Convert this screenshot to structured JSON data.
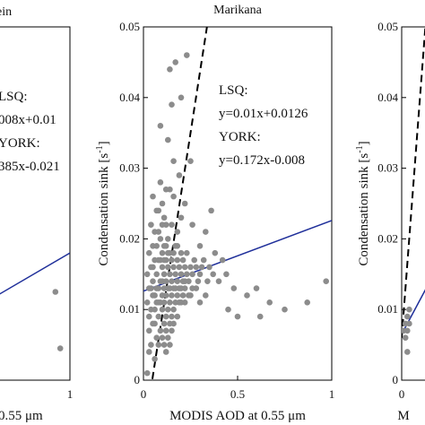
{
  "chart_data": [
    {
      "type": "scatter",
      "title": "",
      "title_partial": "ein",
      "xlabel": "0.55 μm",
      "ylabel": "",
      "xlim": [
        0,
        1
      ],
      "ylim": [
        0,
        0.05
      ],
      "x_ticks": [
        "1"
      ],
      "y_ticks": [],
      "annotations": [
        "LSQ:",
        "008x+0.01",
        "YORK:",
        "385x-0.021"
      ],
      "series": [
        {
          "points": [
            [
              0.85,
              0.0125
            ],
            [
              0.9,
              0.0045
            ]
          ]
        }
      ],
      "lines": [
        {
          "kind": "lsq",
          "style": "solid",
          "color": "#1f2f9a",
          "slope": 0.008,
          "intercept": 0.01
        }
      ]
    },
    {
      "type": "scatter",
      "title": "Marikana",
      "xlabel": "MODIS AOD at 0.55 μm",
      "ylabel": "Condensation sink [s",
      "ylabel_sup": "-1",
      "ylabel_close": "]",
      "xlim": [
        0,
        1
      ],
      "ylim": [
        0,
        0.05
      ],
      "x_ticks": [
        "0",
        "0.5",
        "1"
      ],
      "y_ticks": [
        "0",
        "0.01",
        "0.02",
        "0.03",
        "0.04",
        "0.05"
      ],
      "annotations": [
        "LSQ:",
        "y=0.01x+0.0126",
        "YORK:",
        "y=0.172x-0.008"
      ],
      "series": [
        {
          "points": [
            [
              0.02,
              0.001
            ],
            [
              0.03,
              0.004
            ],
            [
              0.03,
              0.007
            ],
            [
              0.04,
              0.01
            ],
            [
              0.04,
              0.013
            ],
            [
              0.05,
              0.016
            ],
            [
              0.05,
              0.019
            ],
            [
              0.06,
              0.003
            ],
            [
              0.06,
              0.008
            ],
            [
              0.06,
              0.012
            ],
            [
              0.07,
              0.006
            ],
            [
              0.07,
              0.011
            ],
            [
              0.07,
              0.015
            ],
            [
              0.08,
              0.005
            ],
            [
              0.08,
              0.009
            ],
            [
              0.08,
              0.013
            ],
            [
              0.08,
              0.017
            ],
            [
              0.09,
              0.007
            ],
            [
              0.09,
              0.011
            ],
            [
              0.09,
              0.014
            ],
            [
              0.09,
              0.02
            ],
            [
              0.1,
              0.006
            ],
            [
              0.1,
              0.01
            ],
            [
              0.1,
              0.012
            ],
            [
              0.1,
              0.016
            ],
            [
              0.1,
              0.018
            ],
            [
              0.11,
              0.008
            ],
            [
              0.11,
              0.011
            ],
            [
              0.11,
              0.013
            ],
            [
              0.11,
              0.015
            ],
            [
              0.11,
              0.019
            ],
            [
              0.12,
              0.007
            ],
            [
              0.12,
              0.009
            ],
            [
              0.12,
              0.012
            ],
            [
              0.12,
              0.014
            ],
            [
              0.12,
              0.017
            ],
            [
              0.13,
              0.01
            ],
            [
              0.13,
              0.013
            ],
            [
              0.13,
              0.016
            ],
            [
              0.13,
              0.02
            ],
            [
              0.14,
              0.008
            ],
            [
              0.14,
              0.011
            ],
            [
              0.14,
              0.015
            ],
            [
              0.14,
              0.018
            ],
            [
              0.15,
              0.012
            ],
            [
              0.15,
              0.014
            ],
            [
              0.15,
              0.022
            ],
            [
              0.16,
              0.01
            ],
            [
              0.16,
              0.013
            ],
            [
              0.16,
              0.016
            ],
            [
              0.17,
              0.011
            ],
            [
              0.17,
              0.015
            ],
            [
              0.17,
              0.019
            ],
            [
              0.18,
              0.012
            ],
            [
              0.18,
              0.014
            ],
            [
              0.18,
              0.017
            ],
            [
              0.19,
              0.013
            ],
            [
              0.19,
              0.016
            ],
            [
              0.2,
              0.011
            ],
            [
              0.2,
              0.015
            ],
            [
              0.2,
              0.018
            ],
            [
              0.21,
              0.014
            ],
            [
              0.21,
              0.017
            ],
            [
              0.22,
              0.013
            ],
            [
              0.22,
              0.016
            ],
            [
              0.23,
              0.015
            ],
            [
              0.23,
              0.018
            ],
            [
              0.24,
              0.014
            ],
            [
              0.25,
              0.016
            ],
            [
              0.26,
              0.015
            ],
            [
              0.27,
              0.017
            ],
            [
              0.28,
              0.016
            ],
            [
              0.3,
              0.015
            ],
            [
              0.32,
              0.017
            ],
            [
              0.35,
              0.016
            ],
            [
              0.38,
              0.018
            ],
            [
              0.42,
              0.017
            ],
            [
              0.05,
              0.026
            ],
            [
              0.08,
              0.024
            ],
            [
              0.1,
              0.025
            ],
            [
              0.12,
              0.022
            ],
            [
              0.14,
              0.027
            ],
            [
              0.16,
              0.026
            ],
            [
              0.18,
              0.021
            ],
            [
              0.2,
              0.023
            ],
            [
              0.13,
              0.034
            ],
            [
              0.16,
              0.031
            ],
            [
              0.19,
              0.029
            ],
            [
              0.22,
              0.025
            ],
            [
              0.17,
              0.045
            ],
            [
              0.23,
              0.046
            ],
            [
              0.09,
              0.036
            ],
            [
              0.2,
              0.04
            ],
            [
              0.14,
              0.044
            ],
            [
              0.25,
              0.031
            ],
            [
              0.15,
              0.039
            ],
            [
              0.26,
              0.022
            ],
            [
              0.3,
              0.019
            ],
            [
              0.33,
              0.021
            ],
            [
              0.36,
              0.024
            ],
            [
              0.02,
              0.015
            ],
            [
              0.03,
              0.018
            ],
            [
              0.04,
              0.022
            ],
            [
              0.05,
              0.012
            ],
            [
              0.06,
              0.021
            ],
            [
              0.07,
              0.024
            ],
            [
              0.09,
              0.028
            ],
            [
              0.11,
              0.023
            ],
            [
              0.12,
              0.027
            ],
            [
              0.15,
              0.009
            ],
            [
              0.18,
              0.009
            ],
            [
              0.22,
              0.011
            ],
            [
              0.25,
              0.012
            ],
            [
              0.28,
              0.013
            ],
            [
              0.3,
              0.011
            ],
            [
              0.33,
              0.012
            ],
            [
              0.4,
              0.014
            ],
            [
              0.45,
              0.01
            ],
            [
              0.5,
              0.009
            ],
            [
              0.55,
              0.012
            ],
            [
              0.6,
              0.013
            ],
            [
              0.62,
              0.009
            ],
            [
              0.67,
              0.011
            ],
            [
              0.75,
              0.01
            ],
            [
              0.87,
              0.011
            ],
            [
              0.97,
              0.014
            ],
            [
              0.03,
              0.009
            ],
            [
              0.04,
              0.005
            ],
            [
              0.05,
              0.008
            ],
            [
              0.06,
              0.017
            ],
            [
              0.07,
              0.019
            ],
            [
              0.08,
              0.021
            ],
            [
              0.1,
              0.022
            ],
            [
              0.11,
              0.005
            ],
            [
              0.12,
              0.004
            ],
            [
              0.13,
              0.006
            ],
            [
              0.14,
              0.005
            ],
            [
              0.15,
              0.007
            ],
            [
              0.16,
              0.008
            ],
            [
              0.02,
              0.011
            ],
            [
              0.03,
              0.013
            ],
            [
              0.04,
              0.016
            ],
            [
              0.05,
              0.014
            ],
            [
              0.06,
              0.01
            ],
            [
              0.07,
              0.013
            ],
            [
              0.08,
              0.011
            ],
            [
              0.09,
              0.017
            ],
            [
              0.1,
              0.014
            ],
            [
              0.11,
              0.017
            ],
            [
              0.12,
              0.019
            ],
            [
              0.13,
              0.018
            ],
            [
              0.14,
              0.013
            ],
            [
              0.15,
              0.017
            ],
            [
              0.16,
              0.018
            ],
            [
              0.17,
              0.013
            ],
            [
              0.18,
              0.019
            ],
            [
              0.19,
              0.011
            ],
            [
              0.2,
              0.013
            ],
            [
              0.21,
              0.012
            ],
            [
              0.22,
              0.014
            ],
            [
              0.24,
              0.012
            ],
            [
              0.26,
              0.013
            ],
            [
              0.29,
              0.014
            ],
            [
              0.31,
              0.016
            ],
            [
              0.34,
              0.014
            ],
            [
              0.37,
              0.015
            ],
            [
              0.44,
              0.015
            ],
            [
              0.48,
              0.013
            ]
          ]
        }
      ],
      "lines": [
        {
          "kind": "lsq",
          "style": "solid",
          "color": "#1f2f9a",
          "slope": 0.01,
          "intercept": 0.0126
        },
        {
          "kind": "york",
          "style": "dashed",
          "color": "#000000",
          "slope": 0.172,
          "intercept": -0.008
        }
      ]
    },
    {
      "type": "scatter",
      "title": "",
      "xlabel": "M",
      "ylabel": "Condensation sink [s",
      "ylabel_sup": "-1",
      "ylabel_close": "]",
      "xlim": [
        0,
        1
      ],
      "ylim": [
        0,
        0.05
      ],
      "x_ticks": [
        "0"
      ],
      "y_ticks": [
        "0",
        "0.01",
        "0.02",
        "0.03",
        "0.04",
        "0.05"
      ],
      "annotations": [],
      "series": [
        {
          "points": [
            [
              0.01,
              0.007
            ],
            [
              0.02,
              0.008
            ],
            [
              0.02,
              0.006
            ],
            [
              0.03,
              0.009
            ],
            [
              0.03,
              0.007
            ],
            [
              0.04,
              0.008
            ],
            [
              0.04,
              0.01
            ],
            [
              0.03,
              0.004
            ]
          ]
        }
      ],
      "lines": [
        {
          "kind": "lsq",
          "style": "solid",
          "color": "#1f2f9a",
          "slope": 0.05,
          "intercept": 0.0065
        },
        {
          "kind": "york",
          "style": "dashed",
          "color": "#000000",
          "slope": 0.35,
          "intercept": 0.006
        }
      ]
    }
  ]
}
